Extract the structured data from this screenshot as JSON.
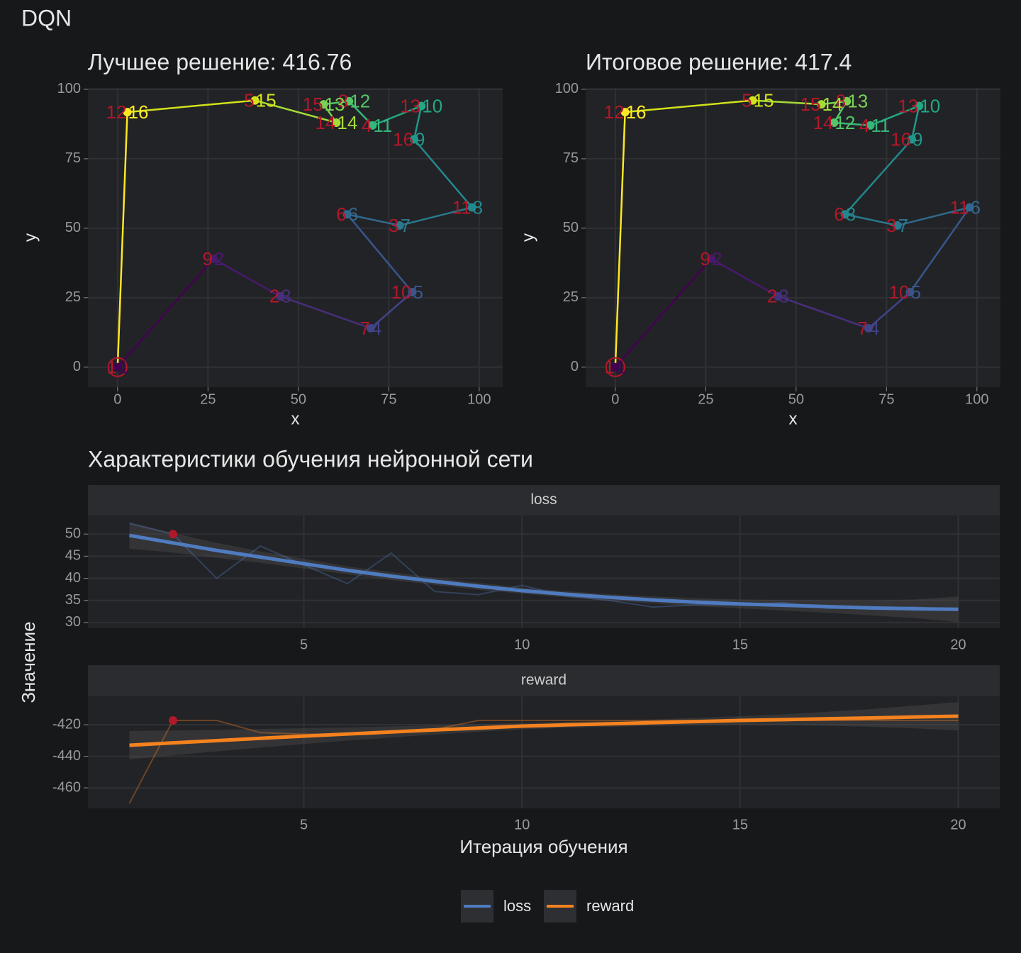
{
  "title": "DQN",
  "chart_data": [
    {
      "type": "route",
      "title": "Лучшее решение: 416.76",
      "xlabel": "x",
      "ylabel": "y",
      "xlim": [
        -8.2,
        106.5
      ],
      "ylim": [
        -7.2,
        100.5
      ],
      "xticks": [
        0,
        25,
        50,
        75,
        100
      ],
      "yticks": [
        0,
        25,
        50,
        75,
        100
      ],
      "x": [
        0,
        26.5,
        45,
        70,
        81.5,
        63.5,
        78,
        98,
        82,
        84,
        70.5,
        64,
        57,
        60.5,
        38,
        2.7
      ],
      "y": [
        0,
        39,
        25.5,
        14,
        27,
        55,
        51,
        57.5,
        82,
        94,
        87,
        95.7,
        94.6,
        88,
        96,
        91.8
      ],
      "city_labels": [
        1,
        9,
        2,
        7,
        10,
        6,
        3,
        11,
        16,
        13,
        4,
        8,
        15,
        14,
        5,
        12
      ],
      "order_labels": [
        1,
        2,
        3,
        4,
        5,
        6,
        7,
        8,
        9,
        10,
        11,
        12,
        13,
        14,
        15,
        16
      ],
      "colors": [
        "#440154",
        "#481a6c",
        "#472f7d",
        "#414487",
        "#39568c",
        "#31688e",
        "#2a788e",
        "#23888e",
        "#1f988b",
        "#22a884",
        "#35b779",
        "#54c568",
        "#7ad151",
        "#a5db36",
        "#d2e21b",
        "#fde725"
      ],
      "city_label_color": "#b2182b",
      "start_color": "#b2182b"
    },
    {
      "type": "route",
      "title": "Итоговое решение: 417.4",
      "xlabel": "x",
      "ylabel": "y",
      "xlim": [
        -8.2,
        106.5
      ],
      "ylim": [
        -7.2,
        100.5
      ],
      "xticks": [
        0,
        25,
        50,
        75,
        100
      ],
      "yticks": [
        0,
        25,
        50,
        75,
        100
      ],
      "x": [
        0,
        26.5,
        45,
        70,
        81.5,
        98,
        78,
        63.5,
        82,
        84,
        70.5,
        60.5,
        64,
        57,
        38,
        2.7
      ],
      "y": [
        0,
        39,
        25.5,
        14,
        27,
        57.5,
        51,
        55,
        82,
        94,
        87,
        88,
        95.7,
        94.6,
        96,
        91.8
      ],
      "city_labels": [
        1,
        9,
        2,
        7,
        10,
        11,
        3,
        6,
        16,
        13,
        4,
        14,
        8,
        15,
        5,
        12
      ],
      "order_labels": [
        1,
        2,
        3,
        4,
        5,
        6,
        7,
        8,
        9,
        10,
        11,
        12,
        13,
        14,
        15,
        16
      ],
      "colors": [
        "#440154",
        "#481a6c",
        "#472f7d",
        "#414487",
        "#39568c",
        "#31688e",
        "#2a788e",
        "#23888e",
        "#1f988b",
        "#22a884",
        "#35b779",
        "#54c568",
        "#7ad151",
        "#a5db36",
        "#d2e21b",
        "#fde725"
      ],
      "city_label_color": "#b2182b",
      "start_color": "#b2182b"
    },
    {
      "type": "facets",
      "title": "Характеристики обучения нейронной сети",
      "xlabel": "Итерация обучения",
      "ylabel": "Значение",
      "x": [
        1,
        2,
        3,
        4,
        5,
        6,
        7,
        8,
        9,
        10,
        11,
        12,
        13,
        14,
        15,
        16,
        17,
        18,
        19,
        20
      ],
      "xlim": [
        0.05,
        20.95
      ],
      "xticks": [
        5,
        10,
        15,
        20
      ],
      "highlight_color": "#b2182b",
      "panels": [
        {
          "name": "loss",
          "color": "#4f7bc0",
          "ylim": [
            28.7,
            54.2
          ],
          "yticks": [
            30,
            35,
            40,
            45,
            50
          ],
          "values": [
            52.4,
            50,
            40,
            47.3,
            43,
            38.8,
            45.7,
            37,
            36.3,
            38.4,
            36,
            35,
            33.5,
            34,
            34,
            34.5,
            33.2,
            33.2,
            33.5,
            32.9
          ],
          "smooth": [
            49.7,
            48.0,
            46.3,
            44.8,
            43.3,
            41.8,
            40.5,
            39.3,
            38.2,
            37.2,
            36.4,
            35.7,
            35.1,
            34.6,
            34.2,
            33.9,
            33.6,
            33.3,
            33.1,
            33.0
          ],
          "smooth_lower": [
            46.7,
            45.8,
            44.6,
            43.5,
            42.2,
            40.9,
            39.6,
            38.5,
            37.4,
            36.5,
            35.7,
            35.0,
            34.3,
            33.7,
            33.2,
            32.7,
            32.2,
            31.6,
            31.0,
            30.1
          ],
          "smooth_upper": [
            52.7,
            50.2,
            48.0,
            46.1,
            44.4,
            42.7,
            41.4,
            40.1,
            39.0,
            37.9,
            37.1,
            36.4,
            35.9,
            35.5,
            35.2,
            35.1,
            35.0,
            35.0,
            35.2,
            35.9
          ],
          "best": {
            "x": 2,
            "y": 50
          }
        },
        {
          "name": "reward",
          "color": "#f5821f",
          "ylim": [
            -473,
            -402
          ],
          "yticks": [
            -420,
            -440,
            -460
          ],
          "values": [
            -469.9,
            -417.3,
            -417.3,
            -425,
            -426,
            -426,
            -425,
            -423,
            -417.3,
            -417.3,
            -417.3,
            -417.3,
            -417.3,
            -417.3,
            -417.3,
            -417.3,
            -417.3,
            -417.3,
            -417.3,
            -417.3
          ],
          "smooth": [
            -433,
            -431.5,
            -430.1,
            -428.6,
            -427.2,
            -425.9,
            -424.6,
            -423.3,
            -422.1,
            -420.9,
            -420.1,
            -419.4,
            -418.7,
            -418,
            -417.3,
            -416.8,
            -416.2,
            -415.7,
            -415.1,
            -414.6
          ],
          "smooth_lower": [
            -442,
            -439.4,
            -436.9,
            -434.5,
            -432.2,
            -430.1,
            -428.1,
            -426.2,
            -424.5,
            -422.9,
            -422.0,
            -421.3,
            -420.7,
            -420.3,
            -420.0,
            -420.2,
            -420.6,
            -421.3,
            -422.3,
            -423.6
          ],
          "smooth_upper": [
            -424,
            -423.6,
            -423.3,
            -422.7,
            -422.2,
            -421.7,
            -421.1,
            -420.4,
            -419.7,
            -418.9,
            -418.2,
            -417.5,
            -416.7,
            -415.7,
            -414.6,
            -413.4,
            -411.8,
            -410.1,
            -407.9,
            -405.6
          ],
          "best": {
            "x": 2,
            "y": -417.3
          }
        }
      ]
    }
  ]
}
